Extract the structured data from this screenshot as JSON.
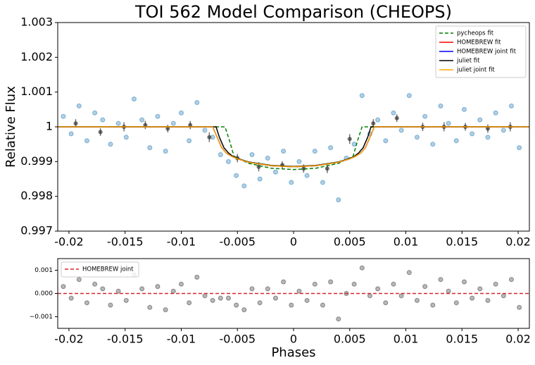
{
  "chart_data": [
    {
      "type": "line",
      "title": "TOI 562 Model Comparison (CHEOPS)",
      "ylabel": "Relative Flux",
      "xlim": [
        -0.021,
        0.021
      ],
      "ylim": [
        0.997,
        1.003
      ],
      "xticks": [
        -0.02,
        -0.015,
        -0.01,
        -0.005,
        0,
        0.005,
        0.01,
        0.015,
        0.02
      ],
      "yticks": [
        0.997,
        0.998,
        0.999,
        1,
        1.001,
        1.002,
        1.003
      ],
      "legend": "upper right",
      "series": [
        {
          "type": "scatter",
          "color": "#1f77b4",
          "x": [
            -0.0205,
            -0.0198,
            -0.0191,
            -0.0184,
            -0.0177,
            -0.017,
            -0.0163,
            -0.0156,
            -0.0149,
            -0.0142,
            -0.0135,
            -0.0128,
            -0.0121,
            -0.0114,
            -0.0107,
            -0.01,
            -0.0093,
            -0.0086,
            -0.0079,
            -0.0072,
            -0.0065,
            -0.0058,
            -0.0051,
            -0.0044,
            -0.0037,
            -0.003,
            -0.0023,
            -0.0016,
            -0.0009,
            -0.0002,
            0.0005,
            0.0012,
            0.0019,
            0.0026,
            0.0033,
            0.004,
            0.0047,
            0.0054,
            0.0061,
            0.0068,
            0.0075,
            0.0082,
            0.0089,
            0.0096,
            0.0103,
            0.011,
            0.0117,
            0.0124,
            0.0131,
            0.0138,
            0.0145,
            0.0152,
            0.0159,
            0.0166,
            0.0173,
            0.018,
            0.0187,
            0.0194,
            0.0201
          ],
          "values": [
            1.0003,
            0.9998,
            1.0006,
            0.9996,
            1.0004,
            1.0002,
            0.9995,
            1.0001,
            0.9997,
            1.0008,
            1.0002,
            0.9994,
            1.0003,
            0.9993,
            1.0001,
            1.0004,
            0.9996,
            1.0007,
            0.9999,
            0.9997,
            0.9992,
            0.999,
            0.9986,
            0.9983,
            0.9992,
            0.9985,
            0.9991,
            0.9987,
            0.9993,
            0.9984,
            0.999,
            0.9986,
            0.9993,
            0.9984,
            0.9994,
            0.9979,
            0.9991,
            0.9995,
            1.0009,
            0.9998,
            1.0002,
            0.9996,
            1.0004,
            0.9999,
            1.0009,
            0.9997,
            1.0003,
            0.9995,
            1.0006,
            1.0001,
            0.9996,
            1.0005,
            0.9998,
            1.0002,
            0.9997,
            1.0004,
            0.9999,
            1.0006,
            0.9994
          ]
        },
        {
          "type": "errorbar",
          "color": "#333333",
          "x": [
            -0.0194,
            -0.0172,
            -0.0151,
            -0.0132,
            -0.0112,
            -0.0092,
            -0.0075,
            -0.005,
            -0.0031,
            -0.001,
            0.0009,
            0.003,
            0.005,
            0.0071,
            0.0092,
            0.0115,
            0.0134,
            0.0153,
            0.0173,
            0.0193
          ],
          "values": [
            1.0001,
            0.99985,
            1.0,
            1.00005,
            0.99995,
            1.00005,
            0.9997,
            0.9991,
            0.99885,
            0.9989,
            0.9988,
            0.9988,
            0.99965,
            1.0001,
            1.00025,
            1.0,
            1.0,
            1.0,
            0.99995,
            1.0
          ],
          "errors": [
            0.00012,
            0.00011,
            0.00013,
            0.00012,
            0.00011,
            0.00012,
            0.00014,
            0.00012,
            0.00013,
            0.00011,
            0.00012,
            0.00013,
            0.00014,
            0.00012,
            0.00011,
            0.00012,
            0.00013,
            0.00011,
            0.00012,
            0.00013
          ]
        },
        {
          "name": "pycheops fit",
          "color": "green",
          "linestyle": "dashed",
          "x": [
            -0.021,
            -0.0061,
            -0.0057,
            -0.0053,
            -0.004,
            -0.002,
            0,
            0.002,
            0.004,
            0.0053,
            0.0057,
            0.0061,
            0.021
          ],
          "values": [
            1,
            1,
            0.9996,
            0.99915,
            0.99895,
            0.99881,
            0.99877,
            0.99881,
            0.99895,
            0.99915,
            0.9996,
            1,
            1
          ]
        },
        {
          "name": "HOMEBREW fit",
          "color": "red",
          "linestyle": "solid",
          "x": [
            -0.021,
            -0.0072,
            -0.0068,
            -0.0064,
            -0.006,
            -0.0055,
            -0.005,
            -0.004,
            -0.002,
            0,
            0.002,
            0.004,
            0.005,
            0.0055,
            0.006,
            0.0064,
            0.0068,
            0.0072,
            0.021
          ],
          "values": [
            1,
            1,
            0.9997,
            0.9994,
            0.99925,
            0.99915,
            0.99908,
            0.99898,
            0.99888,
            0.99885,
            0.99888,
            0.99898,
            0.99908,
            0.99915,
            0.99925,
            0.9994,
            0.9997,
            1,
            1
          ]
        },
        {
          "name": "HOMEBREW joint fit",
          "color": "blue",
          "linestyle": "solid",
          "x": [
            -0.021,
            -0.0072,
            -0.0068,
            -0.0064,
            -0.006,
            -0.0055,
            -0.005,
            -0.004,
            -0.002,
            0,
            0.002,
            0.004,
            0.005,
            0.0055,
            0.006,
            0.0064,
            0.0068,
            0.0072,
            0.021
          ],
          "values": [
            1,
            1,
            0.9997,
            0.9994,
            0.99925,
            0.99915,
            0.99908,
            0.99898,
            0.99888,
            0.99885,
            0.99888,
            0.99898,
            0.99908,
            0.99915,
            0.99925,
            0.9994,
            0.9997,
            1,
            1
          ]
        },
        {
          "name": "juliet fit",
          "color": "black",
          "linestyle": "solid",
          "x": [
            -0.021,
            -0.0069,
            -0.0066,
            -0.0062,
            -0.0058,
            -0.0054,
            -0.005,
            -0.004,
            -0.002,
            0,
            0.002,
            0.004,
            0.005,
            0.0054,
            0.0058,
            0.0062,
            0.0066,
            0.0069,
            0.021
          ],
          "values": [
            1,
            1,
            0.9997,
            0.9994,
            0.99925,
            0.99915,
            0.99909,
            0.99899,
            0.99889,
            0.99886,
            0.99889,
            0.99899,
            0.99909,
            0.99915,
            0.99925,
            0.9994,
            0.9997,
            1,
            1
          ]
        },
        {
          "name": "juliet joint fit",
          "color": "orange",
          "linestyle": "solid",
          "x": [
            -0.021,
            -0.0072,
            -0.0068,
            -0.0064,
            -0.006,
            -0.0055,
            -0.005,
            -0.004,
            -0.002,
            0,
            0.002,
            0.004,
            0.005,
            0.0055,
            0.006,
            0.0064,
            0.0068,
            0.0072,
            0.021
          ],
          "values": [
            1,
            1,
            0.9997,
            0.9994,
            0.99925,
            0.99915,
            0.99908,
            0.99898,
            0.99888,
            0.99885,
            0.99888,
            0.99898,
            0.99908,
            0.99915,
            0.99925,
            0.9994,
            0.9997,
            1,
            1
          ]
        }
      ]
    },
    {
      "type": "line",
      "xlabel": "Phases",
      "xlim": [
        -0.021,
        0.021
      ],
      "ylim": [
        -0.0015,
        0.0015
      ],
      "xticks": [
        -0.02,
        -0.015,
        -0.01,
        -0.005,
        0,
        0.005,
        0.01,
        0.015,
        0.02
      ],
      "yticks": [
        {
          "value": -0.001,
          "label": "−0.001"
        },
        {
          "value": 0,
          "label": "0.000"
        },
        {
          "value": 0.001,
          "label": "0.001"
        }
      ],
      "legend": "upper left",
      "series": [
        {
          "type": "scatter",
          "color": "#333333",
          "x": [
            -0.0205,
            -0.0198,
            -0.0191,
            -0.0184,
            -0.0177,
            -0.017,
            -0.0163,
            -0.0156,
            -0.0149,
            -0.0142,
            -0.0135,
            -0.0128,
            -0.0121,
            -0.0114,
            -0.0107,
            -0.01,
            -0.0093,
            -0.0086,
            -0.0079,
            -0.0072,
            -0.0065,
            -0.0058,
            -0.0051,
            -0.0044,
            -0.0037,
            -0.003,
            -0.0023,
            -0.0016,
            -0.0009,
            -0.0002,
            0.0005,
            0.0012,
            0.0019,
            0.0026,
            0.0033,
            0.004,
            0.0047,
            0.0054,
            0.0061,
            0.0068,
            0.0075,
            0.0082,
            0.0089,
            0.0096,
            0.0103,
            0.011,
            0.0117,
            0.0124,
            0.0131,
            0.0138,
            0.0145,
            0.0152,
            0.0159,
            0.0166,
            0.0173,
            0.018,
            0.0187,
            0.0194,
            0.0201
          ],
          "values": [
            0.0003,
            -0.0002,
            0.0006,
            -0.0004,
            0.0004,
            0.0002,
            -0.0005,
            0.0001,
            -0.0003,
            0.0008,
            0.0002,
            -0.0006,
            0.0003,
            -0.0007,
            0.0001,
            0.0004,
            -0.0004,
            0.0007,
            -0.0001,
            -0.0003,
            -0.0002,
            -0.0002,
            -0.0005,
            -0.0007,
            0.0002,
            -0.0004,
            0.0002,
            -0.0002,
            0.0005,
            -0.0005,
            0.0001,
            -0.0003,
            0.0004,
            -0.0005,
            0.0005,
            -0.0011,
            0,
            0.0004,
            0.0011,
            -0.0001,
            0.0002,
            -0.0004,
            0.0004,
            -0.0001,
            0.0009,
            -0.0003,
            0.0003,
            -0.0005,
            0.0006,
            0.0001,
            -0.0004,
            0.0005,
            -0.0002,
            0.0002,
            -0.0003,
            0.0004,
            -0.0001,
            0.0006,
            -0.0006
          ]
        },
        {
          "name": "HOMEBREW joint",
          "color": "#d62728",
          "linestyle": "dashed",
          "x": [
            -0.021,
            0.021
          ],
          "values": [
            0,
            0
          ]
        }
      ]
    }
  ]
}
